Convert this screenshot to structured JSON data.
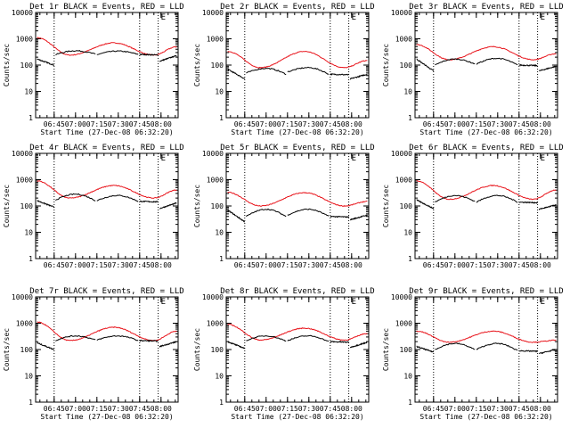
{
  "chart_data": [
    {
      "type": "line",
      "title": "Det 1r BLACK = Events, RED = LLD",
      "xlabel": "Start Time (27-Dec-08 06:32:20)",
      "ylabel": "Counts/sec",
      "yscale": "log",
      "ylim": [
        1,
        10000
      ],
      "x_ticks": [
        "06:45",
        "07:00",
        "07:15",
        "07:30",
        "07:45",
        "08:00"
      ],
      "y_ticks": [
        "1",
        "10",
        "100",
        "1000",
        "10000"
      ],
      "vlines": [
        "06:45",
        "07:45",
        "07:58"
      ],
      "marker_label": "E",
      "red": {
        "start": 1100,
        "min": 240,
        "peak": 700
      },
      "black": {
        "left": [
          170,
          100
        ],
        "mid": [
          250,
          350,
          260
        ],
        "seg3": [
          250,
          340,
          255
        ],
        "right": [
          140,
          230
        ]
      }
    },
    {
      "type": "line",
      "title": "Det 2r BLACK = Events, RED = LLD",
      "xlabel": "Start Time (27-Dec-08 06:32:20)",
      "ylabel": "Counts/sec",
      "yscale": "log",
      "ylim": [
        1,
        10000
      ],
      "x_ticks": [
        "06:45",
        "07:00",
        "07:15",
        "07:30",
        "07:45",
        "08:00"
      ],
      "y_ticks": [
        "1",
        "10",
        "100",
        "1000",
        "10000"
      ],
      "vlines": [
        "06:45",
        "07:45",
        "07:58"
      ],
      "marker_label": "E",
      "red": {
        "start": 330,
        "min": 80,
        "peak": 330
      },
      "black": {
        "left": [
          70,
          30
        ],
        "mid": [
          50,
          75,
          45
        ],
        "seg3": [
          55,
          80,
          45
        ],
        "right": [
          30,
          45
        ]
      }
    },
    {
      "type": "line",
      "title": "Det 3r BLACK = Events, RED = LLD",
      "xlabel": "Start Time (27-Dec-08 06:32:20)",
      "ylabel": "Counts/sec",
      "yscale": "log",
      "ylim": [
        1,
        10000
      ],
      "x_ticks": [
        "06:45",
        "07:00",
        "07:15",
        "07:30",
        "07:45",
        "08:00"
      ],
      "y_ticks": [
        "1",
        "10",
        "100",
        "1000",
        "10000"
      ],
      "vlines": [
        "06:45",
        "07:45",
        "07:58"
      ],
      "marker_label": "E",
      "red": {
        "start": 600,
        "min": 160,
        "peak": 500
      },
      "black": {
        "left": [
          170,
          60
        ],
        "mid": [
          100,
          170,
          110
        ],
        "seg3": [
          110,
          180,
          100
        ],
        "right": [
          60,
          90
        ]
      }
    },
    {
      "type": "line",
      "title": "Det 4r BLACK = Events, RED = LLD",
      "xlabel": "",
      "ylabel": "Counts/sec",
      "yscale": "log",
      "ylim": [
        1,
        10000
      ],
      "x_ticks": [
        "06:45",
        "07:00",
        "07:15",
        "07:30",
        "07:45",
        "08:00"
      ],
      "y_ticks": [
        "1",
        "10",
        "100",
        "1000",
        "10000"
      ],
      "vlines": [
        "06:45",
        "07:45",
        "07:58"
      ],
      "marker_label": "E",
      "red": {
        "start": 900,
        "min": 200,
        "peak": 600
      },
      "black": {
        "left": [
          160,
          90
        ],
        "mid": [
          170,
          280,
          160
        ],
        "seg3": [
          160,
          250,
          150
        ],
        "right": [
          80,
          130
        ]
      }
    },
    {
      "type": "line",
      "title": "Det 5r BLACK = Events, RED = LLD",
      "xlabel": "",
      "ylabel": "Counts/sec",
      "yscale": "log",
      "ylim": [
        1,
        10000
      ],
      "x_ticks": [
        "06:45",
        "07:00",
        "07:15",
        "07:30",
        "07:45",
        "08:00"
      ],
      "y_ticks": [
        "1",
        "10",
        "100",
        "1000",
        "10000"
      ],
      "vlines": [
        "06:45",
        "07:45",
        "07:58"
      ],
      "marker_label": "E",
      "red": {
        "start": 330,
        "min": 100,
        "peak": 320
      },
      "black": {
        "left": [
          70,
          25
        ],
        "mid": [
          40,
          75,
          40
        ],
        "seg3": [
          45,
          75,
          40
        ],
        "right": [
          30,
          45
        ]
      }
    },
    {
      "type": "line",
      "title": "Det 6r BLACK = Events, RED = LLD",
      "xlabel": "",
      "ylabel": "Counts/sec",
      "yscale": "log",
      "ylim": [
        1,
        10000
      ],
      "x_ticks": [
        "06:45",
        "07:00",
        "07:15",
        "07:30",
        "07:45",
        "08:00"
      ],
      "y_ticks": [
        "1",
        "10",
        "100",
        "1000",
        "10000"
      ],
      "vlines": [
        "06:45",
        "07:45",
        "07:58"
      ],
      "marker_label": "E",
      "red": {
        "start": 900,
        "min": 180,
        "peak": 600
      },
      "black": {
        "left": [
          170,
          80
        ],
        "mid": [
          140,
          250,
          150
        ],
        "seg3": [
          140,
          250,
          140
        ],
        "right": [
          75,
          110
        ]
      }
    },
    {
      "type": "line",
      "title": "Det 7r BLACK = Events, RED = LLD",
      "xlabel": "Start Time (27-Dec-08 06:32:20)",
      "ylabel": "Counts/sec",
      "yscale": "log",
      "ylim": [
        1,
        10000
      ],
      "x_ticks": [
        "06:45",
        "07:00",
        "07:15",
        "07:30",
        "07:45",
        "08:00"
      ],
      "y_ticks": [
        "1",
        "10",
        "100",
        "1000",
        "10000"
      ],
      "vlines": [
        "06:45",
        "07:45",
        "07:58"
      ],
      "marker_label": "E",
      "red": {
        "start": 1100,
        "min": 220,
        "peak": 700
      },
      "black": {
        "left": [
          180,
          100
        ],
        "mid": [
          220,
          330,
          230
        ],
        "seg3": [
          230,
          330,
          220
        ],
        "right": [
          130,
          200
        ]
      }
    },
    {
      "type": "line",
      "title": "Det 8r BLACK = Events, RED = LLD",
      "xlabel": "Start Time (27-Dec-08 06:32:20)",
      "ylabel": "Counts/sec",
      "yscale": "log",
      "ylim": [
        1,
        10000
      ],
      "x_ticks": [
        "06:45",
        "07:00",
        "07:15",
        "07:30",
        "07:45",
        "08:00"
      ],
      "y_ticks": [
        "1",
        "10",
        "100",
        "1000",
        "10000"
      ],
      "vlines": [
        "06:45",
        "07:45",
        "07:58"
      ],
      "marker_label": "E",
      "red": {
        "start": 900,
        "min": 230,
        "peak": 650
      },
      "black": {
        "left": [
          200,
          110
        ],
        "mid": [
          220,
          330,
          210
        ],
        "seg3": [
          220,
          330,
          200
        ],
        "right": [
          120,
          190
        ]
      }
    },
    {
      "type": "line",
      "title": "Det 9r BLACK = Events, RED = LLD",
      "xlabel": "Start Time (27-Dec-08 06:32:20)",
      "ylabel": "Counts/sec",
      "yscale": "log",
      "ylim": [
        1,
        10000
      ],
      "x_ticks": [
        "06:45",
        "07:00",
        "07:15",
        "07:30",
        "07:45",
        "08:00"
      ],
      "y_ticks": [
        "1",
        "10",
        "100",
        "1000",
        "10000"
      ],
      "vlines": [
        "06:45",
        "07:45",
        "07:58"
      ],
      "marker_label": "E",
      "red": {
        "start": 500,
        "min": 190,
        "peak": 500
      },
      "black": {
        "left": [
          130,
          80
        ],
        "mid": [
          100,
          170,
          100
        ],
        "seg3": [
          100,
          170,
          90
        ],
        "right": [
          70,
          100
        ]
      }
    }
  ],
  "colors": {
    "events": "#000000",
    "lld": "#e8141b"
  }
}
